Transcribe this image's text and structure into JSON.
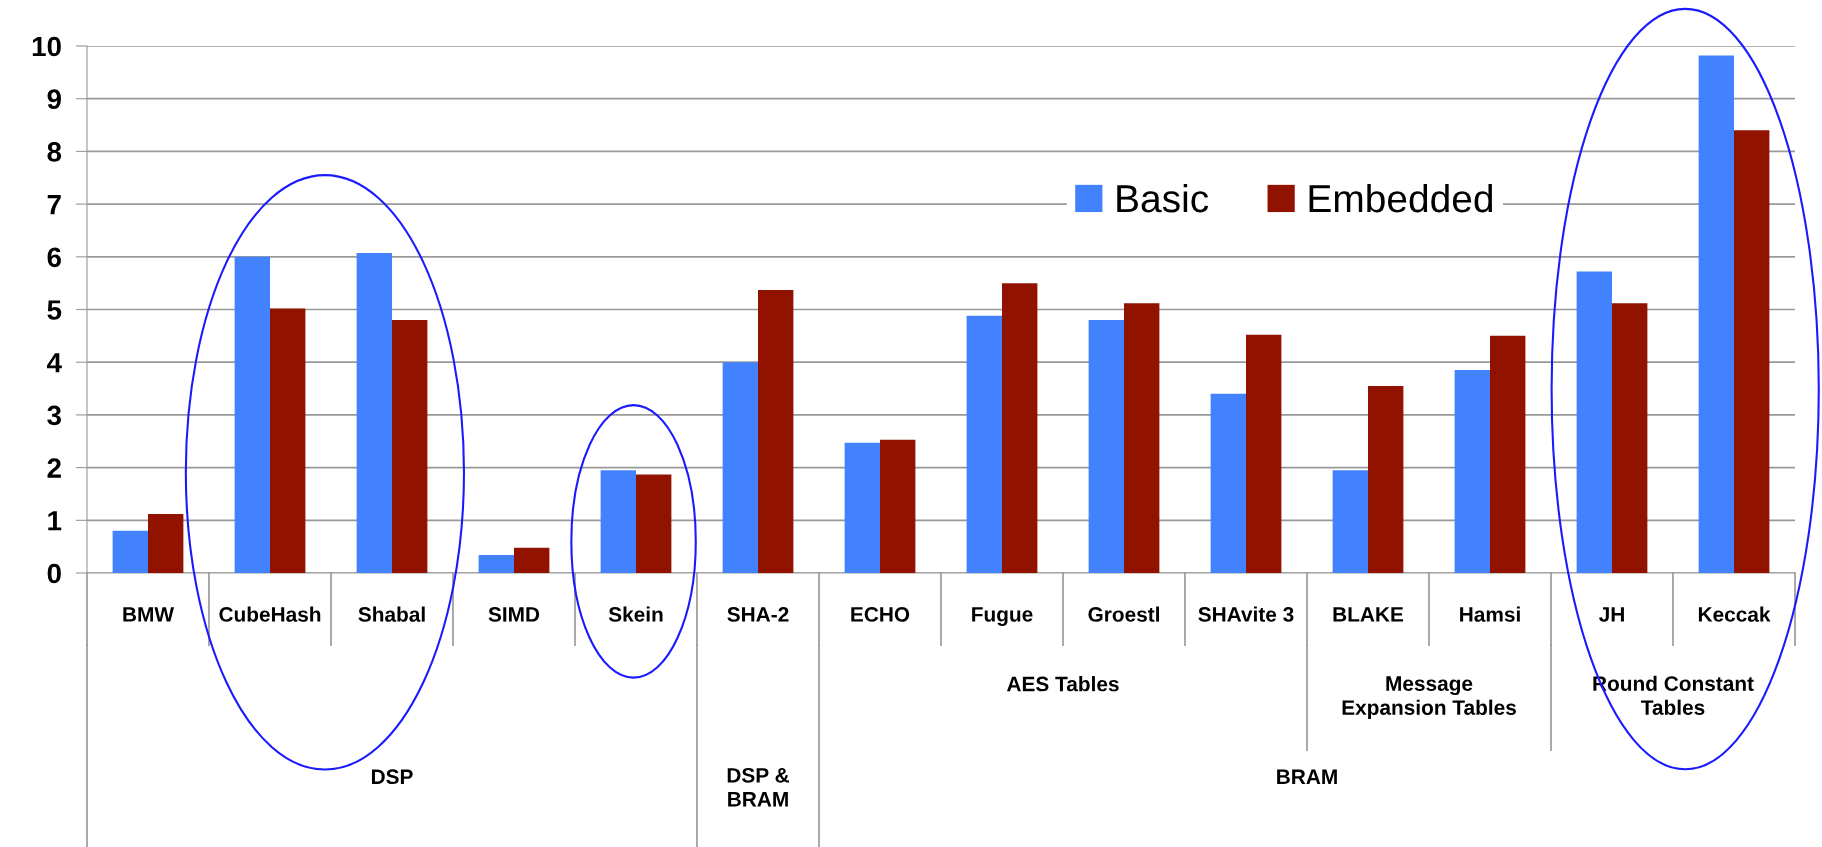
{
  "chart_data": {
    "type": "bar",
    "categories": [
      "BMW",
      "CubeHash",
      "Shabal",
      "SIMD",
      "Skein",
      "SHA-2",
      "ECHO",
      "Fugue",
      "Groestl",
      "SHAvite 3",
      "BLAKE",
      "Hamsi",
      "JH",
      "Keccak"
    ],
    "series": [
      {
        "name": "Basic",
        "color": "#4382ff",
        "values": [
          0.8,
          6.0,
          6.07,
          0.34,
          1.95,
          4.0,
          2.47,
          4.88,
          4.8,
          3.4,
          1.95,
          3.85,
          5.72,
          9.82
        ]
      },
      {
        "name": "Embedded",
        "color": "#921200",
        "values": [
          1.12,
          5.02,
          4.8,
          0.48,
          1.87,
          5.37,
          2.53,
          5.5,
          5.12,
          4.52,
          3.55,
          4.5,
          5.12,
          8.4
        ]
      }
    ],
    "annotations": [
      "AES Tables",
      "Message\nExpansion Tables",
      "Round Constant\nTables",
      "DSP",
      "DSP &\nBRAM",
      "BRAM"
    ],
    "ylim": [
      0,
      10
    ],
    "yticks": [
      0,
      1,
      2,
      3,
      4,
      5,
      6,
      7,
      8,
      9,
      10
    ],
    "grid": "y",
    "legend": "top right"
  }
}
